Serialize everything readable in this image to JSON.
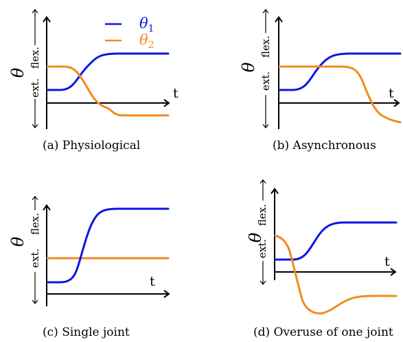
{
  "colors": {
    "theta1": "#0a14e6",
    "theta2": "#f28a1a",
    "axis": "#000000"
  },
  "legend": [
    {
      "symbol": "θ",
      "subscript": "1",
      "color": "#0a14e6"
    },
    {
      "symbol": "θ",
      "subscript": "2",
      "color": "#f28a1a"
    }
  ],
  "labels": {
    "theta": "θ",
    "flex": "flex.",
    "ext": "ext.",
    "time": "t"
  },
  "chart_data": [
    {
      "type": "line",
      "caption": "(a) Physiological",
      "series": [
        {
          "name": "θ1",
          "color": "#0a14e6",
          "x": [
            0,
            0.14,
            0.22,
            0.28,
            0.34,
            0.42,
            1.0
          ],
          "values": [
            0.35,
            0.36,
            0.46,
            0.68,
            0.88,
            1.0,
            1.0
          ]
        },
        {
          "name": "θ2",
          "color": "#f28a1a",
          "x": [
            0,
            0.16,
            0.22,
            0.3,
            0.38,
            0.46,
            1.0
          ],
          "values": [
            0.62,
            0.61,
            0.52,
            0.25,
            0.04,
            -0.03,
            -0.03
          ]
        }
      ]
    },
    {
      "type": "line",
      "caption": "(b) Asynchronous",
      "series": [
        {
          "name": "θ1",
          "color": "#0a14e6",
          "x": [
            0,
            0.14,
            0.22,
            0.3,
            0.38,
            0.46,
            1.0
          ],
          "values": [
            0.35,
            0.36,
            0.46,
            0.72,
            0.92,
            1.0,
            1.0
          ]
        },
        {
          "name": "θ2",
          "color": "#f28a1a",
          "x": [
            0,
            0.5,
            0.6,
            0.68,
            0.76,
            0.84,
            0.92,
            1.0
          ],
          "values": [
            0.62,
            0.62,
            0.61,
            0.5,
            0.2,
            0.0,
            -0.05,
            -0.05
          ]
        }
      ]
    },
    {
      "type": "line",
      "caption": "(c) Single joint",
      "series": [
        {
          "name": "θ1",
          "color": "#0a14e6",
          "x": [
            0,
            0.14,
            0.2,
            0.26,
            0.32,
            0.38,
            0.46,
            1.0
          ],
          "values": [
            0.07,
            0.08,
            0.16,
            0.5,
            0.82,
            0.97,
            1.0,
            1.0
          ]
        },
        {
          "name": "θ2",
          "color": "#f28a1a",
          "x": [
            0,
            1.0
          ],
          "values": [
            0.5,
            0.5
          ]
        }
      ]
    },
    {
      "type": "line",
      "caption": "(d) Overuse of one joint",
      "series": [
        {
          "name": "θ1",
          "color": "#0a14e6",
          "x": [
            0,
            0.14,
            0.22,
            0.3,
            0.38,
            0.46,
            1.0
          ],
          "values": [
            0.35,
            0.36,
            0.46,
            0.72,
            0.92,
            1.0,
            1.0
          ]
        },
        {
          "name": "θ2",
          "color": "#f28a1a",
          "x": [
            0,
            0.05,
            0.1,
            0.16,
            0.22,
            0.3,
            0.38,
            0.46,
            0.55,
            0.7,
            1.0
          ],
          "values": [
            0.62,
            0.58,
            0.45,
            0.1,
            -0.55,
            -1.05,
            -1.22,
            -1.12,
            -0.97,
            -0.9,
            -0.9
          ]
        }
      ]
    }
  ]
}
